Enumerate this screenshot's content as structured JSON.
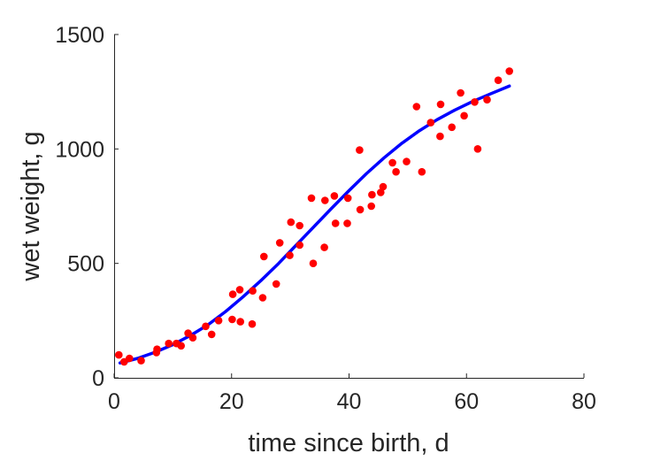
{
  "chart_data": {
    "type": "scatter",
    "xlabel": "time since birth, d",
    "ylabel": "wet weight, g",
    "xlim": [
      0,
      80
    ],
    "ylim": [
      0,
      1500
    ],
    "xticks": [
      0,
      20,
      40,
      60,
      80
    ],
    "yticks": [
      0,
      500,
      1000,
      1500
    ],
    "xtick_labels": [
      "0",
      "20",
      "40",
      "60",
      "80"
    ],
    "ytick_labels": [
      "0",
      "500",
      "1000",
      "1500"
    ],
    "grid": false,
    "legend": "none",
    "series": [
      {
        "kind": "scatter",
        "color": "#ff0000",
        "points": [
          [
            0.8,
            100
          ],
          [
            1.7,
            70
          ],
          [
            2.6,
            85
          ],
          [
            4.6,
            75
          ],
          [
            7.2,
            110
          ],
          [
            7.3,
            125
          ],
          [
            9.3,
            150
          ],
          [
            10.6,
            150
          ],
          [
            11.4,
            140
          ],
          [
            12.6,
            195
          ],
          [
            13.4,
            175
          ],
          [
            15.6,
            225
          ],
          [
            16.6,
            190
          ],
          [
            17.8,
            250
          ],
          [
            20.1,
            255
          ],
          [
            20.2,
            365
          ],
          [
            21.4,
            385
          ],
          [
            21.5,
            245
          ],
          [
            23.5,
            235
          ],
          [
            23.6,
            380
          ],
          [
            25.3,
            350
          ],
          [
            25.5,
            530
          ],
          [
            27.6,
            410
          ],
          [
            28.2,
            590
          ],
          [
            29.9,
            535
          ],
          [
            30.1,
            680
          ],
          [
            31.6,
            665
          ],
          [
            31.6,
            580
          ],
          [
            33.6,
            785
          ],
          [
            33.9,
            500
          ],
          [
            35.8,
            570
          ],
          [
            35.9,
            775
          ],
          [
            37.5,
            795
          ],
          [
            37.7,
            675
          ],
          [
            39.7,
            675
          ],
          [
            39.8,
            785
          ],
          [
            41.8,
            995
          ],
          [
            41.9,
            735
          ],
          [
            43.8,
            750
          ],
          [
            43.9,
            800
          ],
          [
            45.4,
            810
          ],
          [
            45.8,
            835
          ],
          [
            47.4,
            940
          ],
          [
            48.0,
            900
          ],
          [
            49.8,
            945
          ],
          [
            51.5,
            1185
          ],
          [
            52.4,
            900
          ],
          [
            53.9,
            1115
          ],
          [
            55.5,
            1055
          ],
          [
            55.6,
            1195
          ],
          [
            57.5,
            1095
          ],
          [
            59.0,
            1245
          ],
          [
            59.6,
            1145
          ],
          [
            61.4,
            1205
          ],
          [
            61.9,
            1000
          ],
          [
            63.5,
            1215
          ],
          [
            65.4,
            1300
          ],
          [
            67.3,
            1340
          ]
        ]
      },
      {
        "kind": "line",
        "color": "#0000ff",
        "points": [
          [
            1,
            65
          ],
          [
            4,
            85
          ],
          [
            7,
            112
          ],
          [
            10,
            145
          ],
          [
            13,
            185
          ],
          [
            16,
            232
          ],
          [
            19,
            290
          ],
          [
            22,
            355
          ],
          [
            25,
            425
          ],
          [
            28,
            500
          ],
          [
            31,
            580
          ],
          [
            34,
            660
          ],
          [
            37,
            740
          ],
          [
            40,
            818
          ],
          [
            43,
            893
          ],
          [
            46,
            962
          ],
          [
            49,
            1025
          ],
          [
            52,
            1080
          ],
          [
            55,
            1128
          ],
          [
            58,
            1170
          ],
          [
            61,
            1207
          ],
          [
            64,
            1240
          ],
          [
            67.3,
            1275
          ]
        ]
      }
    ]
  }
}
